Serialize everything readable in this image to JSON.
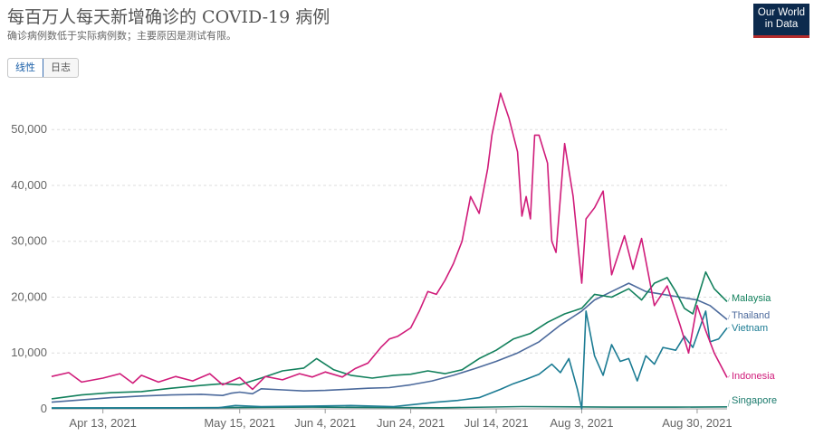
{
  "header": {
    "title": "每百万人每天新增确诊的 COVID-19 病例",
    "subtitle": "确诊病例数低于实际病例数；主要原因是测试有限。",
    "logo_line1": "Our World",
    "logo_line2": "in Data",
    "toggle_linear": "线性",
    "toggle_log": "日志"
  },
  "colors": {
    "Malaysia": "#12805c",
    "Thailand": "#4c6a9c",
    "Vietnam": "#1b7b93",
    "Indonesia": "#d01c7a",
    "Singapore": "#1a7a6c",
    "grid": "#dddddd",
    "axis": "#666666"
  },
  "chart_data": {
    "type": "line",
    "title": "每百万人每天新增确诊的 COVID-19 病例",
    "xlabel": "",
    "ylabel": "",
    "ylim": [
      0,
      57000
    ],
    "yticks": [
      0,
      10000,
      20000,
      30000,
      40000,
      50000
    ],
    "ytick_labels": [
      "0",
      "10,000",
      "20,000",
      "30,000",
      "40,000",
      "50,000"
    ],
    "xlim": [
      "2021-04-01",
      "2021-09-06"
    ],
    "xticks": [
      "2021-04-13",
      "2021-05-15",
      "2021-06-04",
      "2021-06-24",
      "2021-07-14",
      "2021-08-03",
      "2021-08-30"
    ],
    "xtick_labels": [
      "Apr 13, 2021",
      "May 15, 2021",
      "Jun 4, 2021",
      "Jun 24, 2021",
      "Jul 14, 2021",
      "Aug 3, 2021",
      "Aug 30, 2021"
    ],
    "grid": "horizontal",
    "legend": "line-end labels on right",
    "series": [
      {
        "name": "Indonesia",
        "points": [
          [
            "2021-04-01",
            5800
          ],
          [
            "2021-04-05",
            6500
          ],
          [
            "2021-04-08",
            4800
          ],
          [
            "2021-04-13",
            5500
          ],
          [
            "2021-04-17",
            6300
          ],
          [
            "2021-04-20",
            4600
          ],
          [
            "2021-04-22",
            6000
          ],
          [
            "2021-04-26",
            4800
          ],
          [
            "2021-04-30",
            5800
          ],
          [
            "2021-05-04",
            5000
          ],
          [
            "2021-05-08",
            6300
          ],
          [
            "2021-05-11",
            4300
          ],
          [
            "2021-05-15",
            5600
          ],
          [
            "2021-05-18",
            3500
          ],
          [
            "2021-05-21",
            5800
          ],
          [
            "2021-05-25",
            5200
          ],
          [
            "2021-05-29",
            6300
          ],
          [
            "2021-06-01",
            5700
          ],
          [
            "2021-06-04",
            6600
          ],
          [
            "2021-06-08",
            5700
          ],
          [
            "2021-06-11",
            7200
          ],
          [
            "2021-06-14",
            8200
          ],
          [
            "2021-06-17",
            11000
          ],
          [
            "2021-06-19",
            12500
          ],
          [
            "2021-06-21",
            13000
          ],
          [
            "2021-06-24",
            14500
          ],
          [
            "2021-06-26",
            17500
          ],
          [
            "2021-06-28",
            21000
          ],
          [
            "2021-06-30",
            20500
          ],
          [
            "2021-07-02",
            23000
          ],
          [
            "2021-07-04",
            26000
          ],
          [
            "2021-07-06",
            30000
          ],
          [
            "2021-07-08",
            38000
          ],
          [
            "2021-07-10",
            35000
          ],
          [
            "2021-07-12",
            43000
          ],
          [
            "2021-07-13",
            49000
          ],
          [
            "2021-07-15",
            56500
          ],
          [
            "2021-07-17",
            52000
          ],
          [
            "2021-07-19",
            46000
          ],
          [
            "2021-07-20",
            34500
          ],
          [
            "2021-07-21",
            38000
          ],
          [
            "2021-07-22",
            34000
          ],
          [
            "2021-07-23",
            49000
          ],
          [
            "2021-07-24",
            49000
          ],
          [
            "2021-07-26",
            44000
          ],
          [
            "2021-07-27",
            30000
          ],
          [
            "2021-07-28",
            28000
          ],
          [
            "2021-07-30",
            47500
          ],
          [
            "2021-08-01",
            38000
          ],
          [
            "2021-08-03",
            22500
          ],
          [
            "2021-08-04",
            34000
          ],
          [
            "2021-08-06",
            36000
          ],
          [
            "2021-08-08",
            39000
          ],
          [
            "2021-08-10",
            24000
          ],
          [
            "2021-08-13",
            31000
          ],
          [
            "2021-08-15",
            25000
          ],
          [
            "2021-08-17",
            30500
          ],
          [
            "2021-08-20",
            18500
          ],
          [
            "2021-08-23",
            22000
          ],
          [
            "2021-08-26",
            15000
          ],
          [
            "2021-08-28",
            10000
          ],
          [
            "2021-08-30",
            18500
          ],
          [
            "2021-09-01",
            14000
          ],
          [
            "2021-09-03",
            10000
          ],
          [
            "2021-09-06",
            5600
          ]
        ]
      },
      {
        "name": "Malaysia",
        "points": [
          [
            "2021-04-01",
            1800
          ],
          [
            "2021-04-08",
            2500
          ],
          [
            "2021-04-15",
            2900
          ],
          [
            "2021-04-22",
            3100
          ],
          [
            "2021-04-29",
            3700
          ],
          [
            "2021-05-06",
            4200
          ],
          [
            "2021-05-11",
            4500
          ],
          [
            "2021-05-15",
            4300
          ],
          [
            "2021-05-20",
            5500
          ],
          [
            "2021-05-25",
            6800
          ],
          [
            "2021-05-30",
            7300
          ],
          [
            "2021-06-02",
            9000
          ],
          [
            "2021-06-06",
            7000
          ],
          [
            "2021-06-10",
            6000
          ],
          [
            "2021-06-15",
            5500
          ],
          [
            "2021-06-20",
            6000
          ],
          [
            "2021-06-24",
            6200
          ],
          [
            "2021-06-28",
            6800
          ],
          [
            "2021-07-02",
            6300
          ],
          [
            "2021-07-06",
            7000
          ],
          [
            "2021-07-10",
            9000
          ],
          [
            "2021-07-14",
            10500
          ],
          [
            "2021-07-18",
            12500
          ],
          [
            "2021-07-22",
            13500
          ],
          [
            "2021-07-26",
            15500
          ],
          [
            "2021-07-30",
            17000
          ],
          [
            "2021-08-03",
            18000
          ],
          [
            "2021-08-06",
            20500
          ],
          [
            "2021-08-10",
            20000
          ],
          [
            "2021-08-14",
            21500
          ],
          [
            "2021-08-17",
            19500
          ],
          [
            "2021-08-20",
            22500
          ],
          [
            "2021-08-23",
            23500
          ],
          [
            "2021-08-25",
            21000
          ],
          [
            "2021-08-27",
            18000
          ],
          [
            "2021-08-29",
            17000
          ],
          [
            "2021-09-01",
            24500
          ],
          [
            "2021-09-03",
            21500
          ],
          [
            "2021-09-06",
            19200
          ]
        ]
      },
      {
        "name": "Thailand",
        "points": [
          [
            "2021-04-01",
            1200
          ],
          [
            "2021-04-08",
            1600
          ],
          [
            "2021-04-15",
            2000
          ],
          [
            "2021-04-22",
            2300
          ],
          [
            "2021-04-29",
            2500
          ],
          [
            "2021-05-06",
            2600
          ],
          [
            "2021-05-11",
            2400
          ],
          [
            "2021-05-13",
            2800
          ],
          [
            "2021-05-15",
            3000
          ],
          [
            "2021-05-18",
            2700
          ],
          [
            "2021-05-20",
            3600
          ],
          [
            "2021-05-25",
            3400
          ],
          [
            "2021-05-30",
            3200
          ],
          [
            "2021-06-04",
            3300
          ],
          [
            "2021-06-09",
            3500
          ],
          [
            "2021-06-14",
            3700
          ],
          [
            "2021-06-19",
            3800
          ],
          [
            "2021-06-24",
            4300
          ],
          [
            "2021-06-29",
            5000
          ],
          [
            "2021-07-04",
            6000
          ],
          [
            "2021-07-09",
            7200
          ],
          [
            "2021-07-14",
            8500
          ],
          [
            "2021-07-19",
            10000
          ],
          [
            "2021-07-24",
            12000
          ],
          [
            "2021-07-29",
            15000
          ],
          [
            "2021-08-03",
            17500
          ],
          [
            "2021-08-06",
            19500
          ],
          [
            "2021-08-10",
            21000
          ],
          [
            "2021-08-14",
            22500
          ],
          [
            "2021-08-18",
            21000
          ],
          [
            "2021-08-22",
            20500
          ],
          [
            "2021-08-26",
            20000
          ],
          [
            "2021-08-30",
            19500
          ],
          [
            "2021-09-02",
            18500
          ],
          [
            "2021-09-06",
            16000
          ]
        ]
      },
      {
        "name": "Vietnam",
        "points": [
          [
            "2021-04-01",
            150
          ],
          [
            "2021-04-20",
            150
          ],
          [
            "2021-05-10",
            200
          ],
          [
            "2021-05-14",
            600
          ],
          [
            "2021-05-20",
            400
          ],
          [
            "2021-06-01",
            500
          ],
          [
            "2021-06-10",
            600
          ],
          [
            "2021-06-20",
            400
          ],
          [
            "2021-06-25",
            800
          ],
          [
            "2021-06-30",
            1200
          ],
          [
            "2021-07-05",
            1500
          ],
          [
            "2021-07-10",
            2000
          ],
          [
            "2021-07-15",
            3500
          ],
          [
            "2021-07-18",
            4500
          ],
          [
            "2021-07-21",
            5300
          ],
          [
            "2021-07-24",
            6200
          ],
          [
            "2021-07-27",
            8000
          ],
          [
            "2021-07-29",
            6500
          ],
          [
            "2021-07-31",
            9000
          ],
          [
            "2021-08-02",
            3500
          ],
          [
            "2021-08-03",
            0
          ],
          [
            "2021-08-04",
            17500
          ],
          [
            "2021-08-06",
            9500
          ],
          [
            "2021-08-08",
            6000
          ],
          [
            "2021-08-10",
            11500
          ],
          [
            "2021-08-12",
            8500
          ],
          [
            "2021-08-14",
            9000
          ],
          [
            "2021-08-16",
            5000
          ],
          [
            "2021-08-18",
            9500
          ],
          [
            "2021-08-20",
            8000
          ],
          [
            "2021-08-22",
            11000
          ],
          [
            "2021-08-25",
            10500
          ],
          [
            "2021-08-27",
            13000
          ],
          [
            "2021-08-29",
            11000
          ],
          [
            "2021-09-01",
            17500
          ],
          [
            "2021-09-02",
            12000
          ],
          [
            "2021-09-04",
            12500
          ],
          [
            "2021-09-06",
            14500
          ]
        ]
      },
      {
        "name": "Singapore",
        "points": [
          [
            "2021-04-01",
            150
          ],
          [
            "2021-05-01",
            200
          ],
          [
            "2021-06-01",
            300
          ],
          [
            "2021-07-01",
            200
          ],
          [
            "2021-07-20",
            400
          ],
          [
            "2021-08-10",
            300
          ],
          [
            "2021-08-25",
            300
          ],
          [
            "2021-09-06",
            350
          ]
        ]
      }
    ]
  }
}
